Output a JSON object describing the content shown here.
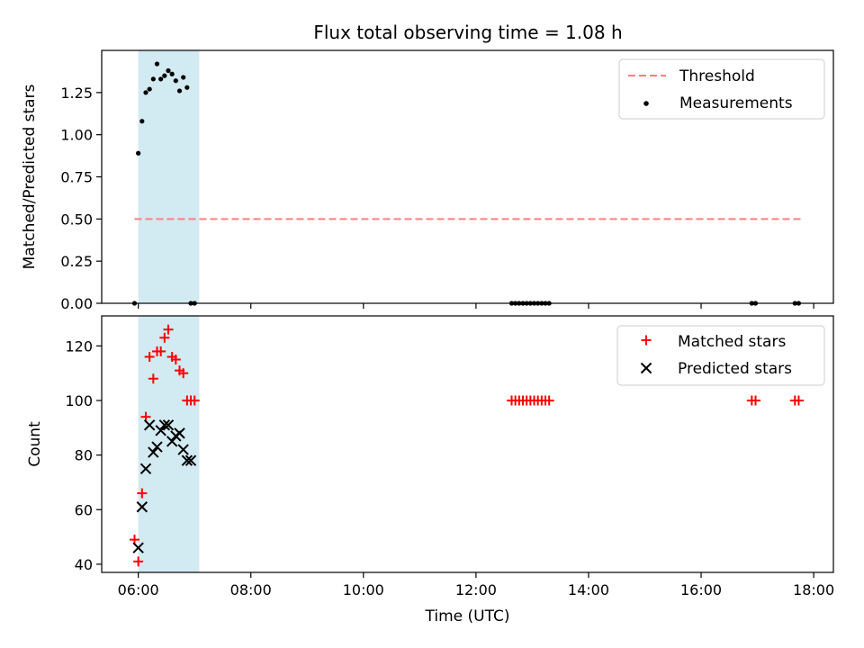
{
  "title": "Flux total observing time = 1.08 h",
  "xlabel": "Time (UTC)",
  "x_ticks": [
    "06:00",
    "08:00",
    "10:00",
    "12:00",
    "14:00",
    "16:00",
    "18:00"
  ],
  "colors": {
    "threshold": "#ff7f7f",
    "measurements": "#000000",
    "matched": "#ff0000",
    "predicted": "#000000",
    "highlight": "#add8e6"
  },
  "chart_data": [
    {
      "type": "scatter",
      "ylabel": "Matched/Predicted stars",
      "xlim": [
        "05:21",
        "18:21"
      ],
      "ylim": [
        0,
        1.5
      ],
      "y_ticks": [
        "0.00",
        "0.25",
        "0.50",
        "0.75",
        "1.00",
        "1.25"
      ],
      "grid": false,
      "legend": "top-right",
      "observing_window": [
        "06:00",
        "07:05"
      ],
      "threshold": {
        "name": "Threshold",
        "value": 0.5,
        "x_range": [
          "05:56",
          "17:46"
        ]
      },
      "series": [
        {
          "name": "Measurements",
          "x": [
            "05:56",
            "06:00",
            "06:04",
            "06:08",
            "06:12",
            "06:16",
            "06:20",
            "06:24",
            "06:28",
            "06:32",
            "06:36",
            "06:40",
            "06:44",
            "06:48",
            "06:52",
            "06:56",
            "07:00",
            "12:38",
            "12:42",
            "12:46",
            "12:50",
            "12:54",
            "12:58",
            "13:02",
            "13:06",
            "13:10",
            "13:14",
            "13:18",
            "16:54",
            "16:58",
            "17:40",
            "17:44"
          ],
          "y": [
            0.0,
            0.89,
            1.08,
            1.25,
            1.27,
            1.33,
            1.42,
            1.33,
            1.35,
            1.38,
            1.36,
            1.32,
            1.26,
            1.34,
            1.28,
            0,
            0,
            0,
            0,
            0,
            0,
            0,
            0,
            0,
            0,
            0,
            0,
            0,
            0,
            0,
            0,
            0
          ]
        }
      ]
    },
    {
      "type": "scatter",
      "ylabel": "Count",
      "xlabel": "Time (UTC)",
      "xlim": [
        "05:21",
        "18:21"
      ],
      "ylim": [
        37,
        131
      ],
      "y_ticks": [
        "40",
        "60",
        "80",
        "100",
        "120"
      ],
      "grid": false,
      "legend": "top-right",
      "observing_window": [
        "06:00",
        "07:05"
      ],
      "series": [
        {
          "name": "Matched stars",
          "x": [
            "05:56",
            "06:00",
            "06:04",
            "06:08",
            "06:12",
            "06:16",
            "06:20",
            "06:24",
            "06:28",
            "06:32",
            "06:36",
            "06:40",
            "06:44",
            "06:48",
            "06:52",
            "06:56",
            "07:00",
            "12:38",
            "12:42",
            "12:46",
            "12:50",
            "12:54",
            "12:58",
            "13:02",
            "13:06",
            "13:10",
            "13:14",
            "13:18",
            "16:54",
            "16:58",
            "17:40",
            "17:44"
          ],
          "y": [
            49,
            41,
            66,
            94,
            116,
            108,
            118,
            118,
            123,
            126,
            116,
            115,
            111,
            110,
            100,
            100,
            100,
            100,
            100,
            100,
            100,
            100,
            100,
            100,
            100,
            100,
            100,
            100,
            100,
            100,
            100,
            100
          ]
        },
        {
          "name": "Predicted stars",
          "x": [
            "06:00",
            "06:04",
            "06:08",
            "06:12",
            "06:16",
            "06:20",
            "06:24",
            "06:28",
            "06:32",
            "06:36",
            "06:40",
            "06:44",
            "06:48",
            "06:52",
            "06:56"
          ],
          "y": [
            46,
            61,
            75,
            91,
            81,
            83,
            89,
            91,
            91,
            85,
            87,
            88,
            82,
            78,
            78
          ]
        }
      ]
    }
  ]
}
